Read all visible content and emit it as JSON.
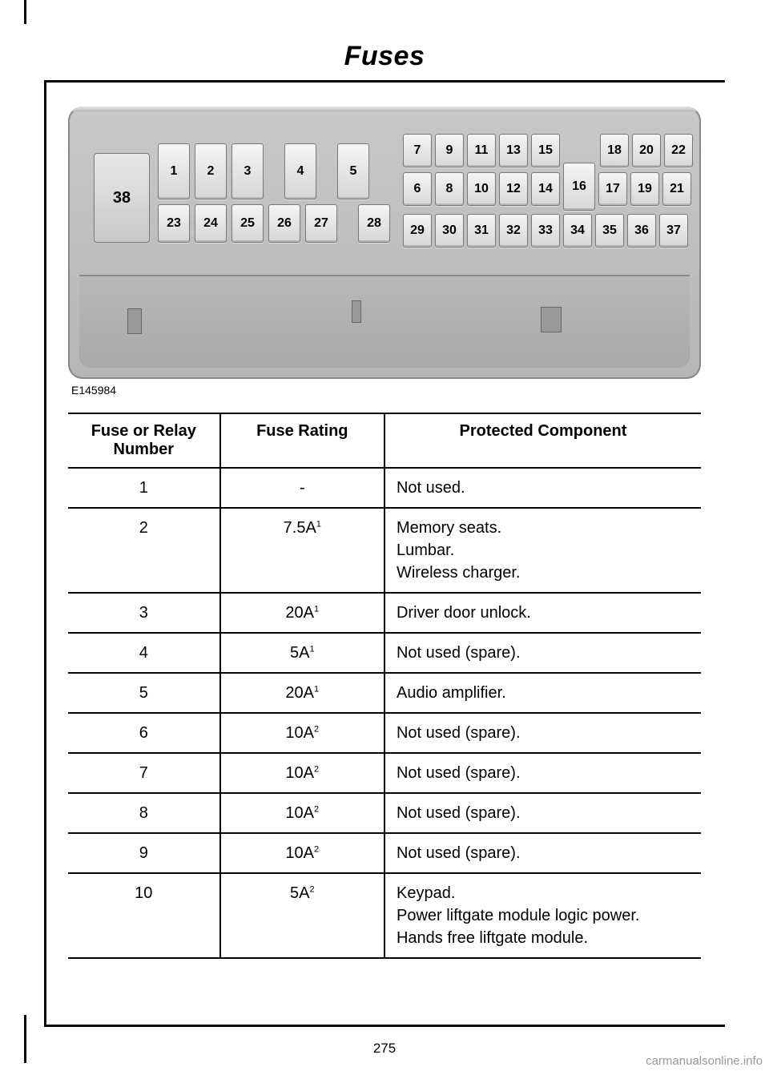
{
  "header": {
    "title": "Fuses"
  },
  "diagram": {
    "caption": "E145984",
    "large_slot": "38",
    "row_top_left": [
      "1",
      "2",
      "3",
      "",
      "4",
      "",
      "5"
    ],
    "row_top_right_upper": [
      "7",
      "",
      "9",
      "",
      "11",
      "",
      "13",
      "",
      "15",
      "",
      "",
      "",
      "18",
      "",
      "20",
      "",
      "22"
    ],
    "row_top_right_lower": [
      "6",
      "",
      "8",
      "",
      "10",
      "",
      "12",
      "",
      "14",
      "",
      "16",
      "",
      "17",
      "",
      "19",
      "",
      "21"
    ],
    "row_mid_left": [
      "23",
      "24",
      "25",
      "26",
      "27",
      "",
      "28"
    ],
    "row_bottom": [
      "29",
      "30",
      "31",
      "32",
      "33",
      "34",
      "35",
      "36",
      "37"
    ],
    "background_color": "#bfbfbf",
    "slot_color": "#e8e8e8"
  },
  "table": {
    "columns": [
      "Fuse or Relay Number",
      "Fuse Rating",
      "Protected Component"
    ],
    "rows": [
      {
        "num": "1",
        "rating": "-",
        "sup": "",
        "comp": [
          "Not used."
        ]
      },
      {
        "num": "2",
        "rating": "7.5A",
        "sup": "1",
        "comp": [
          "Memory seats.",
          "Lumbar.",
          "Wireless charger."
        ]
      },
      {
        "num": "3",
        "rating": "20A",
        "sup": "1",
        "comp": [
          "Driver door unlock."
        ]
      },
      {
        "num": "4",
        "rating": "5A",
        "sup": "1",
        "comp": [
          "Not used (spare)."
        ]
      },
      {
        "num": "5",
        "rating": "20A",
        "sup": "1",
        "comp": [
          "Audio amplifier."
        ]
      },
      {
        "num": "6",
        "rating": "10A",
        "sup": "2",
        "comp": [
          "Not used (spare)."
        ]
      },
      {
        "num": "7",
        "rating": "10A",
        "sup": "2",
        "comp": [
          "Not used (spare)."
        ]
      },
      {
        "num": "8",
        "rating": "10A",
        "sup": "2",
        "comp": [
          "Not used (spare)."
        ]
      },
      {
        "num": "9",
        "rating": "10A",
        "sup": "2",
        "comp": [
          "Not used (spare)."
        ]
      },
      {
        "num": "10",
        "rating": "5A",
        "sup": "2",
        "comp": [
          "Keypad.",
          "Power liftgate module logic power.",
          "Hands free liftgate module."
        ]
      }
    ]
  },
  "page_number": "275",
  "watermark": "carmanualsonline.info"
}
